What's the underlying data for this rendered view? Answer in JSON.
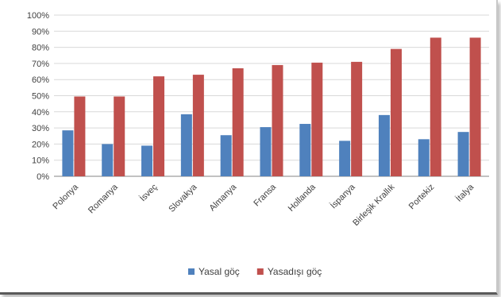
{
  "chart_data": {
    "type": "bar",
    "categories": [
      "Polonya",
      "Romanya",
      "İsveç",
      "Slovakya",
      "Almanya",
      "Fransa",
      "Hollanda",
      "İspanya",
      "Birleşik Krallık",
      "Portekiz",
      "İtalya"
    ],
    "series": [
      {
        "name": "Yasal göç",
        "color": "#4f81bd",
        "values": [
          28.5,
          20,
          19,
          38.5,
          25.5,
          30.5,
          32.5,
          22,
          38,
          23,
          27.5
        ]
      },
      {
        "name": "Yasadışı göç",
        "color": "#c0504d",
        "values": [
          49.5,
          49.5,
          62,
          63,
          67,
          69,
          70.5,
          71,
          79,
          86,
          86
        ]
      }
    ],
    "ylim": [
      0,
      100
    ],
    "yticks": [
      "0%",
      "10%",
      "20%",
      "30%",
      "40%",
      "50%",
      "60%",
      "70%",
      "80%",
      "90%",
      "100%"
    ],
    "xlabel": "",
    "ylabel": "",
    "title": "",
    "grid": true,
    "legend_position": "bottom"
  }
}
